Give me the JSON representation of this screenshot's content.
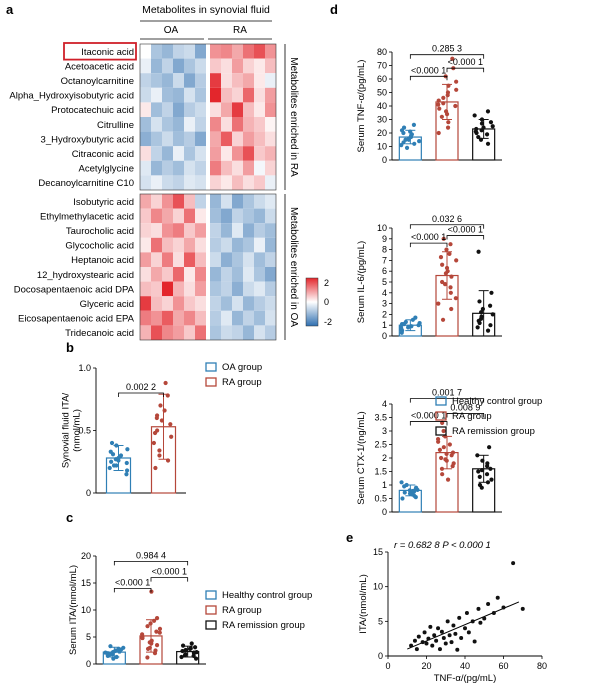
{
  "panel_labels": {
    "a": "a",
    "b": "b",
    "c": "c",
    "d": "d",
    "e": "e"
  },
  "chart_data": [
    {
      "panel": "a",
      "type": "heatmap",
      "title": "Metabolites in synovial fluid",
      "group_labels": [
        "OA",
        "RA"
      ],
      "n_columns": 12,
      "highlight_row": "Itaconic acid",
      "rows": [
        "Itaconic acid",
        "Acetoacetic acid",
        "Octanoylcarnitine",
        "Alpha_Hydroxyisobutyric acid",
        "Protocatechuic acid",
        "Citrulline",
        "3_Hydroxybutyric acid",
        "Citraconic acid",
        "Acetylglycine",
        "Decanoylcarnitine C10",
        "Isobutyric acid",
        "Ethylmethylacetic acid",
        "Taurocholic acid",
        "Glycocholic acid",
        "Heptanoic acid",
        "12_hydroxystearic acid",
        "Docosapentaenoic acid DPA",
        "Glyceric acid",
        "Eicosapentaenoic acid EPA",
        "Tridecanoic acid"
      ],
      "side_labels": [
        "Metabolites enriched in RA",
        "Metabolites enriched in OA"
      ],
      "colorbar": {
        "min": -2,
        "max": 2,
        "ticks": [
          "2",
          "0",
          "-2"
        ]
      },
      "values": [
        [
          0.0,
          -0.8,
          -1.0,
          -0.6,
          -0.5,
          -1.2,
          1.0,
          1.1,
          0.8,
          1.3,
          1.6,
          1.0
        ],
        [
          -0.2,
          -1.0,
          -0.6,
          -1.2,
          -0.8,
          -0.5,
          0.5,
          0.3,
          0.9,
          0.4,
          0.2,
          0.6
        ],
        [
          -0.6,
          -0.8,
          -1.0,
          -0.5,
          -1.2,
          -0.7,
          1.8,
          0.3,
          0.6,
          0.8,
          0.2,
          -0.2
        ],
        [
          -0.5,
          -0.2,
          -0.9,
          -1.0,
          -0.4,
          -0.8,
          2.0,
          0.6,
          0.4,
          1.4,
          0.3,
          0.9
        ],
        [
          0.2,
          -0.9,
          -0.6,
          -1.2,
          -0.7,
          -0.5,
          0.3,
          0.8,
          1.8,
          0.6,
          0.2,
          1.0
        ],
        [
          -0.9,
          -0.4,
          -0.8,
          -1.0,
          -0.2,
          -0.6,
          1.1,
          0.3,
          1.3,
          0.7,
          0.5,
          0.1
        ],
        [
          -1.1,
          -0.8,
          -0.5,
          -0.9,
          -0.7,
          -1.2,
          0.8,
          1.5,
          0.4,
          0.9,
          0.6,
          0.3
        ],
        [
          0.3,
          -0.6,
          -1.0,
          -0.2,
          -0.8,
          -0.4,
          0.9,
          0.2,
          1.0,
          1.6,
          0.5,
          0.7
        ],
        [
          -0.3,
          -1.0,
          -0.7,
          -0.9,
          -0.4,
          -0.6,
          1.2,
          0.6,
          0.3,
          0.9,
          -0.1,
          0.4
        ],
        [
          -0.4,
          -0.2,
          -0.5,
          -0.6,
          -0.3,
          -0.4,
          0.4,
          0.2,
          0.6,
          0.3,
          0.5,
          -0.2
        ],
        [
          0.8,
          0.4,
          1.0,
          1.6,
          0.6,
          -0.6,
          -1.0,
          -0.4,
          -1.2,
          -0.8,
          -0.5,
          -0.3
        ],
        [
          0.5,
          1.1,
          0.8,
          0.4,
          1.3,
          0.2,
          -0.9,
          -1.2,
          -0.6,
          -0.8,
          -1.0,
          -0.5
        ],
        [
          0.4,
          0.3,
          1.0,
          1.2,
          0.5,
          0.9,
          -0.6,
          -1.0,
          -0.3,
          -1.1,
          -0.7,
          -0.9
        ],
        [
          0.2,
          1.3,
          0.6,
          0.4,
          0.8,
          0.3,
          -0.7,
          -0.5,
          -1.0,
          -0.8,
          -0.2,
          -1.0
        ],
        [
          0.9,
          0.4,
          1.2,
          0.3,
          1.5,
          0.6,
          -0.5,
          -1.1,
          -0.8,
          -0.4,
          -0.9,
          -0.6
        ],
        [
          0.3,
          0.8,
          0.5,
          1.4,
          0.2,
          1.1,
          -1.0,
          -0.6,
          -0.9,
          -0.3,
          -0.8,
          -1.2
        ],
        [
          0.6,
          0.5,
          2.0,
          0.7,
          0.3,
          0.9,
          -0.8,
          -0.6,
          -1.1,
          -0.5,
          -0.3,
          -0.7
        ],
        [
          1.8,
          0.6,
          0.4,
          1.0,
          0.5,
          0.3,
          -0.6,
          -0.9,
          -0.4,
          -1.0,
          -0.7,
          -0.5
        ],
        [
          1.2,
          1.0,
          1.5,
          0.8,
          1.1,
          0.6,
          -0.7,
          -0.3,
          -1.0,
          -0.6,
          -0.9,
          -0.4
        ],
        [
          0.7,
          1.6,
          1.1,
          0.9,
          0.5,
          1.3,
          -0.8,
          -0.5,
          -0.6,
          -1.0,
          -0.4,
          -0.7
        ]
      ]
    },
    {
      "panel": "b",
      "type": "bar",
      "ylabel": "Synovial fluid ITA/\n(nmol/mL)",
      "ylim": [
        0,
        1.0
      ],
      "yticks": [
        "0",
        "0.5",
        "1.0"
      ],
      "legend": [
        "OA group",
        "RA group"
      ],
      "groups": [
        {
          "name": "OA group",
          "color": "#2f7fb5",
          "mean": 0.28,
          "sd": 0.1,
          "points": [
            0.15,
            0.18,
            0.2,
            0.22,
            0.24,
            0.25,
            0.27,
            0.28,
            0.3,
            0.31,
            0.33,
            0.35,
            0.38,
            0.4,
            0.26,
            0.22
          ]
        },
        {
          "name": "RA group",
          "color": "#b5473a",
          "mean": 0.53,
          "sd": 0.26,
          "points": [
            0.2,
            0.26,
            0.3,
            0.34,
            0.4,
            0.45,
            0.5,
            0.55,
            0.58,
            0.62,
            0.66,
            0.7,
            0.78,
            0.88,
            0.48,
            0.6
          ]
        }
      ],
      "brackets": [
        {
          "from": 0,
          "to": 1,
          "label": "0.002 2",
          "level": 0.8
        }
      ]
    },
    {
      "panel": "c",
      "type": "bar",
      "ylabel": "Serum ITA/(nmol/mL)",
      "ylim": [
        0,
        20
      ],
      "yticks": [
        "0",
        "5",
        "10",
        "15",
        "20"
      ],
      "legend": [
        "Healthy control group",
        "RA group",
        "RA remission group"
      ],
      "groups": [
        {
          "name": "Healthy control group",
          "color": "#2f7fb5",
          "mean": 2.2,
          "sd": 0.9,
          "points": [
            1.0,
            1.3,
            1.6,
            1.8,
            2.0,
            2.1,
            2.3,
            2.5,
            2.7,
            3.0,
            3.3,
            1.5,
            2.2,
            2.8,
            1.9,
            2.4
          ]
        },
        {
          "name": "RA group",
          "color": "#b5473a",
          "mean": 5.2,
          "sd": 3.0,
          "points": [
            1.2,
            2.0,
            2.5,
            3.0,
            3.5,
            4.0,
            4.3,
            4.8,
            5.1,
            5.5,
            6.0,
            6.5,
            7.0,
            7.5,
            8.0,
            8.5,
            13.4,
            3.8,
            5.8,
            2.8
          ]
        },
        {
          "name": "RA remission group",
          "color": "#111111",
          "mean": 2.3,
          "sd": 1.0,
          "points": [
            1.0,
            1.3,
            1.6,
            1.8,
            2.0,
            2.2,
            2.4,
            2.6,
            2.8,
            3.1,
            3.4,
            3.8,
            1.5,
            2.1,
            2.9
          ]
        }
      ],
      "brackets": [
        {
          "from": 0,
          "to": 1,
          "label": "<0.000 1",
          "level": 14
        },
        {
          "from": 1,
          "to": 2,
          "label": "<0.000 1",
          "level": 16
        },
        {
          "from": 0,
          "to": 2,
          "label": "0.984 4",
          "level": 19
        }
      ]
    },
    {
      "panel": "d1",
      "type": "bar",
      "ylabel": "Serum TNF-α/(pg/mL)",
      "ylim": [
        0,
        80
      ],
      "yticks": [
        "0",
        "10",
        "20",
        "30",
        "40",
        "50",
        "60",
        "70",
        "80"
      ],
      "groups": [
        {
          "name": "Healthy control group",
          "color": "#2f7fb5",
          "mean": 17,
          "sd": 5,
          "points": [
            9,
            11,
            12,
            13,
            14,
            15,
            16,
            17,
            18,
            19,
            20,
            21,
            22,
            24,
            26,
            15
          ]
        },
        {
          "name": "RA group",
          "color": "#b5473a",
          "mean": 43,
          "sd": 13,
          "points": [
            20,
            24,
            28,
            32,
            34,
            36,
            38,
            40,
            42,
            44,
            46,
            48,
            50,
            52,
            55,
            58,
            62,
            68,
            75,
            41
          ]
        },
        {
          "name": "RA remission group",
          "color": "#111111",
          "mean": 23,
          "sd": 7,
          "points": [
            12,
            15,
            17,
            19,
            20,
            22,
            23,
            24,
            25,
            27,
            28,
            30,
            33,
            36,
            21
          ]
        }
      ],
      "brackets": [
        {
          "from": 0,
          "to": 1,
          "label": "<0.000 1",
          "level": 62
        },
        {
          "from": 1,
          "to": 2,
          "label": "<0.000 1",
          "level": 68
        },
        {
          "from": 0,
          "to": 2,
          "label": "0.285 3",
          "level": 78
        }
      ]
    },
    {
      "panel": "d2",
      "type": "bar",
      "ylabel": "Serum IL-6/(pg/mL)",
      "ylim": [
        0,
        10
      ],
      "yticks": [
        "0",
        "1",
        "2",
        "3",
        "4",
        "5",
        "6",
        "7",
        "8",
        "9",
        "10"
      ],
      "groups": [
        {
          "name": "Healthy control group",
          "color": "#2f7fb5",
          "mean": 1.0,
          "sd": 0.5,
          "points": [
            0.3,
            0.5,
            0.6,
            0.7,
            0.8,
            0.9,
            1.0,
            1.1,
            1.2,
            1.3,
            1.5,
            1.7,
            0.8,
            1.1
          ]
        },
        {
          "name": "RA group",
          "color": "#b5473a",
          "mean": 5.6,
          "sd": 2.2,
          "points": [
            1.5,
            2.5,
            3.0,
            3.5,
            4.0,
            4.5,
            5.0,
            5.5,
            6.0,
            6.3,
            6.6,
            7.0,
            7.3,
            7.6,
            8.0,
            8.5,
            9.0,
            4.8,
            5.8
          ]
        },
        {
          "name": "RA remission group",
          "color": "#111111",
          "mean": 2.1,
          "sd": 2.1,
          "points": [
            0.5,
            0.8,
            1.0,
            1.2,
            1.4,
            1.6,
            1.8,
            2.0,
            2.2,
            2.5,
            2.8,
            3.2,
            4.0,
            7.8
          ]
        }
      ],
      "brackets": [
        {
          "from": 0,
          "to": 1,
          "label": "<0.000 1",
          "level": 8.6
        },
        {
          "from": 1,
          "to": 2,
          "label": "<0.000 1",
          "level": 9.3
        },
        {
          "from": 0,
          "to": 2,
          "label": "0.032 6",
          "level": 10.3
        }
      ]
    },
    {
      "panel": "d3",
      "type": "bar",
      "ylabel": "Serum CTX-1/(ng/mL)",
      "ylim": [
        0,
        4
      ],
      "yticks": [
        "0",
        "0.5",
        "1",
        "1.5",
        "2",
        "2.5",
        "3",
        "3.5",
        "4"
      ],
      "legend": [
        "Healthy control group",
        "RA group",
        "RA remission group"
      ],
      "groups": [
        {
          "name": "Healthy control group",
          "color": "#2f7fb5",
          "mean": 0.8,
          "sd": 0.2,
          "points": [
            0.5,
            0.55,
            0.6,
            0.65,
            0.7,
            0.72,
            0.75,
            0.8,
            0.82,
            0.85,
            0.9,
            0.95,
            1.0,
            1.1,
            0.68,
            0.78
          ]
        },
        {
          "name": "RA group",
          "color": "#b5473a",
          "mean": 2.2,
          "sd": 0.6,
          "points": [
            1.2,
            1.4,
            1.6,
            1.7,
            1.8,
            1.9,
            2.0,
            2.1,
            2.2,
            2.3,
            2.4,
            2.5,
            2.6,
            2.7,
            2.8,
            3.0,
            3.3,
            2.15,
            1.95
          ]
        },
        {
          "name": "RA remission group",
          "color": "#111111",
          "mean": 1.6,
          "sd": 0.5,
          "points": [
            0.9,
            1.0,
            1.1,
            1.2,
            1.3,
            1.4,
            1.5,
            1.6,
            1.7,
            1.8,
            1.9,
            2.1,
            2.4,
            1.55
          ]
        }
      ],
      "brackets": [
        {
          "from": 0,
          "to": 1,
          "label": "<0.000 1",
          "level": 3.35
        },
        {
          "from": 1,
          "to": 2,
          "label": "0.008 9",
          "level": 3.65
        },
        {
          "from": 0,
          "to": 2,
          "label": "0.001 7",
          "level": 4.2
        }
      ]
    },
    {
      "panel": "e",
      "type": "scatter",
      "annotation": "r = 0.682 8  P < 0.000 1",
      "xlabel": "TNF-α/(pg/mL)",
      "ylabel": "ITA/(nmol/mL)",
      "xlim": [
        0,
        80
      ],
      "ylim": [
        0,
        15
      ],
      "xticks": [
        "0",
        "20",
        "40",
        "60",
        "80"
      ],
      "yticks": [
        "0",
        "5",
        "10",
        "15"
      ],
      "fit": {
        "x0": 10,
        "y0": 1.0,
        "x1": 68,
        "y1": 7.8
      },
      "points": [
        [
          12,
          1.5
        ],
        [
          14,
          2.2
        ],
        [
          15,
          1.0
        ],
        [
          16,
          2.8
        ],
        [
          18,
          2.0
        ],
        [
          19,
          3.4
        ],
        [
          20,
          1.8
        ],
        [
          21,
          2.5
        ],
        [
          22,
          4.2
        ],
        [
          23,
          1.5
        ],
        [
          24,
          3.0
        ],
        [
          25,
          2.2
        ],
        [
          26,
          4.0
        ],
        [
          27,
          1.0
        ],
        [
          28,
          3.5
        ],
        [
          29,
          2.6
        ],
        [
          30,
          1.8
        ],
        [
          31,
          5.0
        ],
        [
          32,
          3.0
        ],
        [
          33,
          2.0
        ],
        [
          34,
          4.4
        ],
        [
          35,
          3.2
        ],
        [
          36,
          0.9
        ],
        [
          37,
          5.5
        ],
        [
          38,
          2.6
        ],
        [
          40,
          4.0
        ],
        [
          41,
          6.2
        ],
        [
          42,
          3.4
        ],
        [
          44,
          5.0
        ],
        [
          45,
          2.1
        ],
        [
          47,
          6.8
        ],
        [
          48,
          4.8
        ],
        [
          50,
          5.4
        ],
        [
          52,
          7.5
        ],
        [
          55,
          6.2
        ],
        [
          57,
          8.4
        ],
        [
          60,
          7.0
        ],
        [
          65,
          13.4
        ],
        [
          70,
          6.8
        ]
      ]
    }
  ]
}
